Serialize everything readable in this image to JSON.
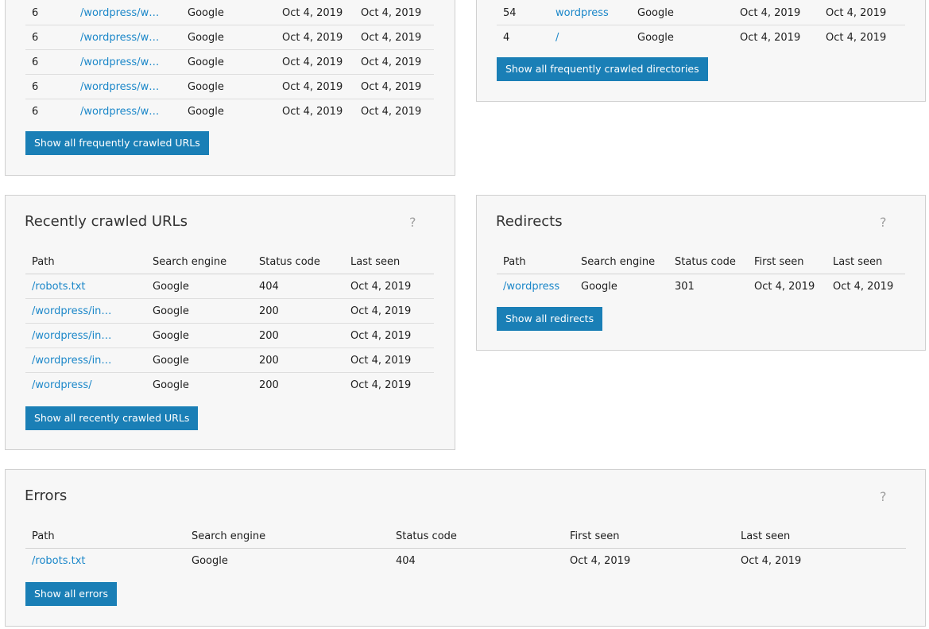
{
  "freq_urls": {
    "rows": [
      {
        "count": "6",
        "path": "/wordpress/w…",
        "engine": "Google",
        "first_seen": "Oct 4, 2019",
        "last_seen": "Oct 4, 2019"
      },
      {
        "count": "6",
        "path": "/wordpress/w…",
        "engine": "Google",
        "first_seen": "Oct 4, 2019",
        "last_seen": "Oct 4, 2019"
      },
      {
        "count": "6",
        "path": "/wordpress/w…",
        "engine": "Google",
        "first_seen": "Oct 4, 2019",
        "last_seen": "Oct 4, 2019"
      },
      {
        "count": "6",
        "path": "/wordpress/w…",
        "engine": "Google",
        "first_seen": "Oct 4, 2019",
        "last_seen": "Oct 4, 2019"
      },
      {
        "count": "6",
        "path": "/wordpress/w…",
        "engine": "Google",
        "first_seen": "Oct 4, 2019",
        "last_seen": "Oct 4, 2019"
      }
    ],
    "button": "Show all frequently crawled URLs"
  },
  "freq_dirs": {
    "rows": [
      {
        "count": "54",
        "path": "wordpress",
        "engine": "Google",
        "first_seen": "Oct 4, 2019",
        "last_seen": "Oct 4, 2019"
      },
      {
        "count": "4",
        "path": "/",
        "engine": "Google",
        "first_seen": "Oct 4, 2019",
        "last_seen": "Oct 4, 2019"
      }
    ],
    "button": "Show all frequently crawled directories"
  },
  "recent": {
    "title": "Recently crawled URLs",
    "help": "?",
    "headers": [
      "Path",
      "Search engine",
      "Status code",
      "Last seen"
    ],
    "rows": [
      {
        "path": "/robots.txt",
        "engine": "Google",
        "status": "404",
        "last_seen": "Oct 4, 2019"
      },
      {
        "path": "/wordpress/in…",
        "engine": "Google",
        "status": "200",
        "last_seen": "Oct 4, 2019"
      },
      {
        "path": "/wordpress/in…",
        "engine": "Google",
        "status": "200",
        "last_seen": "Oct 4, 2019"
      },
      {
        "path": "/wordpress/in…",
        "engine": "Google",
        "status": "200",
        "last_seen": "Oct 4, 2019"
      },
      {
        "path": "/wordpress/",
        "engine": "Google",
        "status": "200",
        "last_seen": "Oct 4, 2019"
      }
    ],
    "button": "Show all recently crawled URLs"
  },
  "redirects": {
    "title": "Redirects",
    "help": "?",
    "headers": [
      "Path",
      "Search engine",
      "Status code",
      "First seen",
      "Last seen"
    ],
    "rows": [
      {
        "path": "/wordpress",
        "engine": "Google",
        "status": "301",
        "first_seen": "Oct 4, 2019",
        "last_seen": "Oct 4, 2019"
      }
    ],
    "button": "Show all redirects"
  },
  "errors": {
    "title": "Errors",
    "help": "?",
    "headers": [
      "Path",
      "Search engine",
      "Status code",
      "First seen",
      "Last seen"
    ],
    "rows": [
      {
        "path": "/robots.txt",
        "engine": "Google",
        "status": "404",
        "first_seen": "Oct 4, 2019",
        "last_seen": "Oct 4, 2019"
      }
    ],
    "button": "Show all errors"
  }
}
